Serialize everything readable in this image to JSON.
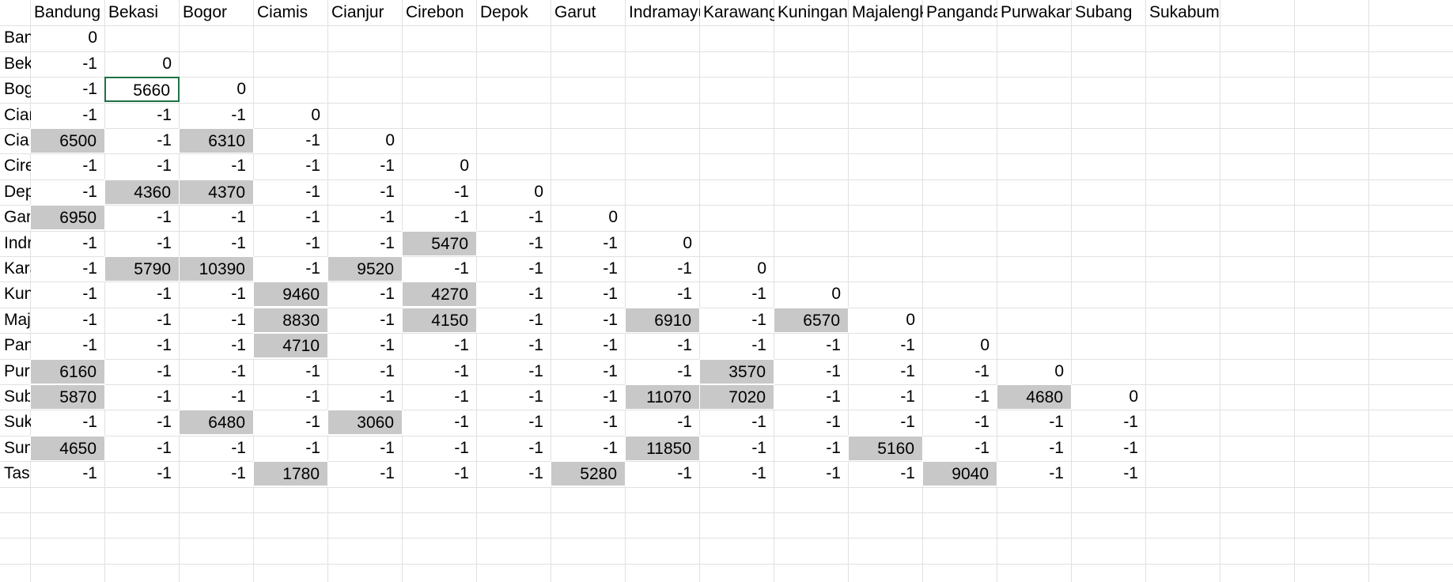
{
  "sheet": {
    "column_headers": [
      "Bandung",
      "Bekasi",
      "Bogor",
      "Ciamis",
      "Cianjur",
      "Cirebon",
      "Depok",
      "Garut",
      "Indramayu",
      "Karawang",
      "Kuningan",
      "Majalengka",
      "Pangandaran",
      "Purwakarta",
      "Subang",
      "Sukabumi"
    ],
    "rows": [
      {
        "label": "Bandung",
        "values": [
          "0"
        ],
        "shaded": []
      },
      {
        "label": "Bekasi",
        "values": [
          "-1",
          "0"
        ],
        "shaded": []
      },
      {
        "label": "Bogor",
        "values": [
          "-1",
          "5660",
          "0"
        ],
        "shaded": [],
        "selected": [
          1
        ]
      },
      {
        "label": "Ciamis",
        "values": [
          "-1",
          "-1",
          "-1",
          "0"
        ],
        "shaded": []
      },
      {
        "label": "Cianjur",
        "values": [
          "6500",
          "-1",
          "6310",
          "-1",
          "0"
        ],
        "shaded": [
          0,
          2
        ]
      },
      {
        "label": "Cirebon",
        "values": [
          "-1",
          "-1",
          "-1",
          "-1",
          "-1",
          "0"
        ],
        "shaded": []
      },
      {
        "label": "Depok",
        "values": [
          "-1",
          "4360",
          "4370",
          "-1",
          "-1",
          "-1",
          "0"
        ],
        "shaded": [
          1,
          2
        ]
      },
      {
        "label": "Garut",
        "values": [
          "6950",
          "-1",
          "-1",
          "-1",
          "-1",
          "-1",
          "-1",
          "0"
        ],
        "shaded": [
          0
        ]
      },
      {
        "label": "Indramayu",
        "values": [
          "-1",
          "-1",
          "-1",
          "-1",
          "-1",
          "5470",
          "-1",
          "-1",
          "0"
        ],
        "shaded": [
          5
        ]
      },
      {
        "label": "Karawang",
        "values": [
          "-1",
          "5790",
          "10390",
          "-1",
          "9520",
          "-1",
          "-1",
          "-1",
          "-1",
          "0"
        ],
        "shaded": [
          1,
          2,
          4
        ]
      },
      {
        "label": "Kuningan",
        "values": [
          "-1",
          "-1",
          "-1",
          "9460",
          "-1",
          "4270",
          "-1",
          "-1",
          "-1",
          "-1",
          "0"
        ],
        "shaded": [
          3,
          5
        ]
      },
      {
        "label": "Majalengka",
        "values": [
          "-1",
          "-1",
          "-1",
          "8830",
          "-1",
          "4150",
          "-1",
          "-1",
          "6910",
          "-1",
          "6570",
          "0"
        ],
        "shaded": [
          3,
          5,
          8,
          10
        ]
      },
      {
        "label": "Pangandaran",
        "values": [
          "-1",
          "-1",
          "-1",
          "4710",
          "-1",
          "-1",
          "-1",
          "-1",
          "-1",
          "-1",
          "-1",
          "-1",
          "0"
        ],
        "shaded": [
          3
        ]
      },
      {
        "label": "Purwakarta",
        "values": [
          "6160",
          "-1",
          "-1",
          "-1",
          "-1",
          "-1",
          "-1",
          "-1",
          "-1",
          "3570",
          "-1",
          "-1",
          "-1",
          "0"
        ],
        "shaded": [
          0,
          9
        ]
      },
      {
        "label": "Subang",
        "values": [
          "5870",
          "-1",
          "-1",
          "-1",
          "-1",
          "-1",
          "-1",
          "-1",
          "11070",
          "7020",
          "-1",
          "-1",
          "-1",
          "4680",
          "0"
        ],
        "shaded": [
          0,
          8,
          9,
          13
        ]
      },
      {
        "label": "Sukabumi",
        "values": [
          "-1",
          "-1",
          "6480",
          "-1",
          "3060",
          "-1",
          "-1",
          "-1",
          "-1",
          "-1",
          "-1",
          "-1",
          "-1",
          "-1",
          "-1"
        ],
        "shaded": [
          2,
          4
        ]
      },
      {
        "label": "Sumedang",
        "values": [
          "4650",
          "-1",
          "-1",
          "-1",
          "-1",
          "-1",
          "-1",
          "-1",
          "11850",
          "-1",
          "-1",
          "5160",
          "-1",
          "-1",
          "-1"
        ],
        "shaded": [
          0,
          8,
          11
        ]
      },
      {
        "label": "Tasikmalaya",
        "values": [
          "-1",
          "-1",
          "-1",
          "1780",
          "-1",
          "-1",
          "-1",
          "5280",
          "-1",
          "-1",
          "-1",
          "-1",
          "9040",
          "-1",
          "-1"
        ],
        "shaded": [
          3,
          7,
          12
        ]
      }
    ],
    "colors": {
      "shade": "#c8c8c8",
      "selection": "#1e7145",
      "grid": "#e1e1e1"
    }
  }
}
